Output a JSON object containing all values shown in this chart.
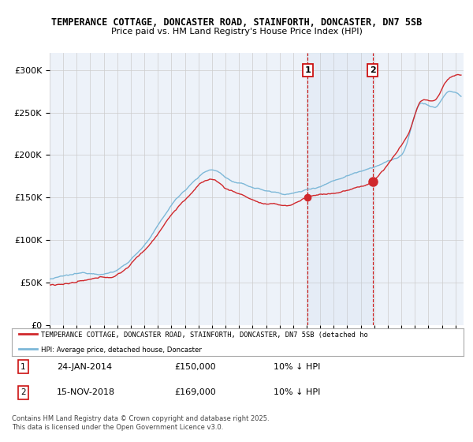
{
  "title_line1": "TEMPERANCE COTTAGE, DONCASTER ROAD, STAINFORTH, DONCASTER, DN7 5SB",
  "title_line2": "Price paid vs. HM Land Registry's House Price Index (HPI)",
  "ylim": [
    0,
    320000
  ],
  "yticks": [
    0,
    50000,
    100000,
    150000,
    200000,
    250000,
    300000
  ],
  "ytick_labels": [
    "£0",
    "£50K",
    "£100K",
    "£150K",
    "£200K",
    "£250K",
    "£300K"
  ],
  "marker1_date": 2014.07,
  "marker2_date": 2018.88,
  "legend_line1": "TEMPERANCE COTTAGE, DONCASTER ROAD, STAINFORTH, DONCASTER, DN7 5SB (detached ho",
  "legend_line2": "HPI: Average price, detached house, Doncaster",
  "footer": "Contains HM Land Registry data © Crown copyright and database right 2025.\nThis data is licensed under the Open Government Licence v3.0.",
  "line_red": "#d0282c",
  "line_blue": "#7db8d8",
  "grid_color": "#cccccc",
  "bg_white": "#ffffff",
  "plot_bg": "#edf2f9"
}
